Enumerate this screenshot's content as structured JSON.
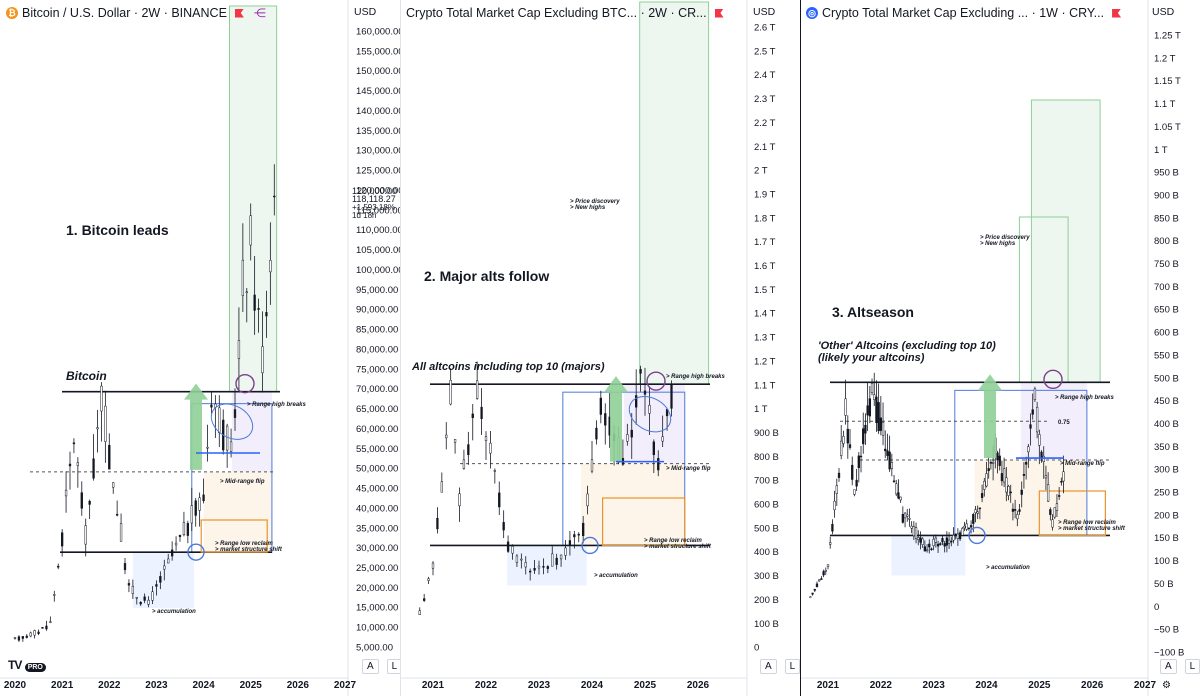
{
  "colors": {
    "range_box": "#4d7ad8",
    "support": "#131722",
    "arrow": "#8fcf97",
    "circle": "#7b3f8e",
    "orange": "#e8942a",
    "green_box": "#8fcf97",
    "candle": "#131722"
  },
  "panels": [
    {
      "header": {
        "icon": "bitcoin-icon",
        "icon_color": "#f7931a",
        "title": "Bitcoin / U.S. Dollar · 2W · BINANCE"
      },
      "heading": "1. Bitcoin leads",
      "series_label": "Bitcoin",
      "axis": {
        "unit": "USD",
        "ticks": [
          "160,000.00",
          "155,000.00",
          "150,000.00",
          "145,000.00",
          "140,000.00",
          "135,000.00",
          "130,000.00",
          "125,000.00",
          "120,000.00",
          "115,000.00",
          "110,000.00",
          "105,000.00",
          "100,000.00",
          "95,000.00",
          "90,000.00",
          "85,000.00",
          "80,000.00",
          "75,000.00",
          "70,000.00",
          "65,000.00",
          "60,000.00",
          "55,000.00",
          "50,000.00",
          "45,000.00",
          "40,000.00",
          "35,000.00",
          "30,000.00",
          "25,000.00",
          "20,000.00",
          "15,000.00",
          "10,000.00",
          "5,000.00"
        ],
        "price_tag": [
          "120,000.00",
          "118,118.27",
          "+1,593.18%",
          "1d 18h"
        ]
      },
      "years": [
        "2020",
        "2021",
        "2022",
        "2023",
        "2024",
        "2025",
        "2026",
        "2027"
      ],
      "annotations": [
        "> Range high breaks",
        "> Mid-range flip",
        "> Range low reclaim",
        "> market structure shift",
        "> accumulation"
      ],
      "logo": "PRO",
      "scale_buttons": [
        "A",
        "L"
      ]
    },
    {
      "header": {
        "title": "Crypto Total Market Cap Excluding BTC... · 2W · CR..."
      },
      "heading": "2. Major alts follow",
      "series_label": "All altcoins including top 10 (majors)",
      "axis": {
        "unit": "USD",
        "ticks": [
          "2.6 T",
          "2.5 T",
          "2.4 T",
          "2.3 T",
          "2.2 T",
          "2.1 T",
          "2 T",
          "1.9 T",
          "1.8 T",
          "1.7 T",
          "1.6 T",
          "1.5 T",
          "1.4 T",
          "1.3 T",
          "1.2 T",
          "1.1 T",
          "1 T",
          "900 B",
          "800 B",
          "700 B",
          "600 B",
          "500 B",
          "400 B",
          "300 B",
          "200 B",
          "100 B",
          "0"
        ]
      },
      "years": [
        "2021",
        "2022",
        "2023",
        "2024",
        "2025",
        "2026"
      ],
      "annotations": [
        "> Price discovery",
        "> New highs",
        "> Range high breaks",
        "> Mid-range flip",
        "> Range low reclaim",
        "> market structure shift",
        "> accumulation"
      ],
      "scale_buttons": [
        "A",
        "L"
      ]
    },
    {
      "header": {
        "icon": "market-cap-icon",
        "icon_color": "#2962ff",
        "title": "Crypto Total Market Cap Excluding ... · 1W · CRY..."
      },
      "heading": "3. Altseason",
      "series_label": [
        "'Other' Altcoins (excluding top 10)",
        "(likely your altcoins)"
      ],
      "axis": {
        "unit": "USD",
        "ticks": [
          "1.25 T",
          "1.2 T",
          "1.15 T",
          "1.1 T",
          "1.05 T",
          "1 T",
          "950 B",
          "900 B",
          "850 B",
          "800 B",
          "750 B",
          "700 B",
          "650 B",
          "600 B",
          "550 B",
          "500 B",
          "450 B",
          "400 B",
          "350 B",
          "300 B",
          "250 B",
          "200 B",
          "150 B",
          "100 B",
          "50 B",
          "0",
          "−50 B",
          "−100 B"
        ]
      },
      "years": [
        "2021",
        "2022",
        "2023",
        "2024",
        "2025",
        "2026",
        "2027"
      ],
      "fib_label": "0.75",
      "annotations": [
        "> Price discovery",
        "> New highs",
        "> Range high breaks",
        "> Mid-range flip",
        "> Range low reclaim",
        "> market structure shift",
        "> accumulation"
      ],
      "scale_buttons": [
        "A",
        "L"
      ]
    }
  ],
  "chart_data": [
    {
      "type": "line",
      "title": "Bitcoin / U.S. Dollar · 2W · BINANCE",
      "ylabel": "USD",
      "ylim": [
        0,
        162000
      ],
      "x": [
        "2020-01",
        "2020-07",
        "2020-10",
        "2021-01",
        "2021-04",
        "2021-07",
        "2021-11",
        "2022-06",
        "2022-11",
        "2023-06",
        "2024-01",
        "2024-03",
        "2024-08",
        "2024-11",
        "2025-01",
        "2025-04",
        "2025-07"
      ],
      "values": [
        7200,
        9200,
        11500,
        33000,
        58000,
        33000,
        67000,
        20000,
        16000,
        30000,
        43000,
        70000,
        52000,
        95000,
        105000,
        78000,
        118118
      ],
      "levels": {
        "range_high": 69000,
        "range_low": 29000,
        "mid_range": 49000
      }
    },
    {
      "type": "line",
      "title": "Crypto Total Market Cap Excluding BTC... · 2W · CR...",
      "ylabel": "USD",
      "ylim": [
        0,
        2650000000000
      ],
      "x": [
        "2020-10",
        "2021-01",
        "2021-05",
        "2021-07",
        "2021-11",
        "2022-06",
        "2022-11",
        "2023-06",
        "2023-11",
        "2024-03",
        "2024-08",
        "2024-12",
        "2025-04",
        "2025-07"
      ],
      "values": [
        150000000000.0,
        350000000000.0,
        1030000000000.0,
        620000000000.0,
        1100000000000.0,
        420000000000.0,
        330000000000.0,
        380000000000.0,
        510000000000.0,
        1000000000000.0,
        770000000000.0,
        1100000000000.0,
        790000000000.0,
        1040000000000.0
      ],
      "levels": {
        "range_high": 1100000000000.0,
        "range_low": 430000000000.0,
        "mid_range": 770000000000.0
      }
    },
    {
      "type": "line",
      "title": "Crypto Total Market Cap Excluding ... · 1W · CRY...",
      "ylabel": "USD",
      "ylim": [
        -100000000000,
        1260000000000
      ],
      "x": [
        "2020-09",
        "2021-01",
        "2021-05",
        "2021-07",
        "2021-11",
        "2022-06",
        "2022-11",
        "2023-06",
        "2023-11",
        "2024-03",
        "2024-08",
        "2024-12",
        "2025-04",
        "2025-07"
      ],
      "values": [
        20000000000.0,
        90000000000.0,
        420000000000.0,
        260000000000.0,
        480000000000.0,
        200000000000.0,
        130000000000.0,
        150000000000.0,
        200000000000.0,
        340000000000.0,
        190000000000.0,
        440000000000.0,
        180000000000.0,
        300000000000.0
      ],
      "levels": {
        "range_high": 490000000000.0,
        "range_low": 155000000000.0,
        "mid_range": 320000000000.0,
        "fib_0_75": 405000000000.0
      }
    }
  ]
}
